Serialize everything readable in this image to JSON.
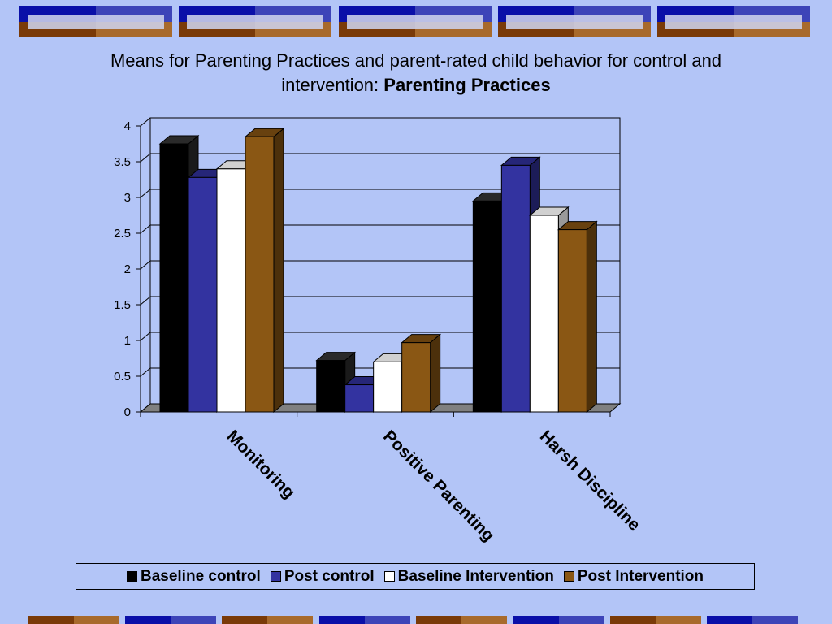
{
  "title": {
    "line1": "Means for Parenting Practices and parent-rated child behavior for control and",
    "line2_plain": "intervention: ",
    "line2_bold": "Parenting Practices"
  },
  "colors": {
    "background": "#b3c5f7",
    "baseline_control": "#000000",
    "post_control": "#3333a0",
    "baseline_intervention": "#ffffff",
    "post_intervention": "#8a5714",
    "floor": "#808080"
  },
  "chart_data": {
    "type": "bar",
    "three_d": true,
    "categories": [
      "Monitoring",
      "Positive Parenting",
      "Harsh Discipline"
    ],
    "series": [
      {
        "name": "Baseline control",
        "values": [
          3.75,
          0.72,
          2.95
        ]
      },
      {
        "name": "Post control",
        "values": [
          3.28,
          0.38,
          3.45
        ]
      },
      {
        "name": "Baseline Intervention",
        "values": [
          3.4,
          0.7,
          2.75
        ]
      },
      {
        "name": "Post Intervention",
        "values": [
          3.85,
          0.97,
          2.55
        ]
      }
    ],
    "yticks": [
      "0",
      "0.5",
      "1",
      "1.5",
      "2",
      "2.5",
      "3",
      "3.5",
      "4"
    ],
    "ylim": [
      0,
      4
    ],
    "grid": true,
    "legend_position": "bottom"
  }
}
